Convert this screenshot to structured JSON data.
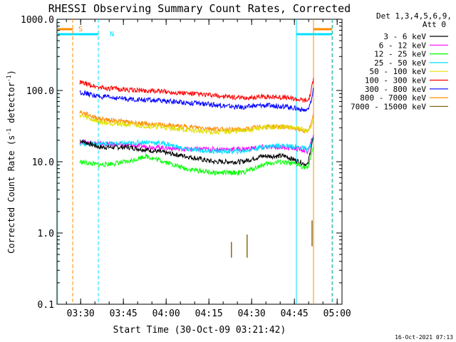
{
  "chart_data": {
    "type": "line",
    "title": "RHESSI Observing Summary Count Rates, Corrected",
    "xlabel": "Start Time (30-Oct-09 03:21:42)",
    "ylabel_main": "Corrected Count Rate (s",
    "ylabel_sup1": "-1",
    "ylabel_mid": " detector",
    "ylabel_sup2": "-1",
    "ylabel_end": ")",
    "yscale": "log",
    "ylim": [
      0.1,
      1000.0
    ],
    "yticks": [
      0.1,
      1.0,
      10.0,
      100.0,
      1000.0
    ],
    "ytick_labels": [
      "0.1",
      "1.0",
      "10.0",
      "100.0",
      "1000.0"
    ],
    "xlim_minutes": [
      0,
      100
    ],
    "xticks_minutes": [
      8.3,
      23.3,
      38.3,
      53.3,
      68.3,
      83.3,
      98.3
    ],
    "xtick_labels": [
      "03:30",
      "03:45",
      "04:00",
      "04:15",
      "04:30",
      "04:45",
      "05:00"
    ],
    "legend_placement": "top-right, outside plot",
    "legend_header": [
      "Det 1,3,4,5,6,9,",
      "Att 0"
    ],
    "series": [
      {
        "name": "3 - 6 keV",
        "color": "#000000",
        "x": [
          8,
          15,
          25,
          35,
          45,
          55,
          65,
          72,
          80,
          85,
          88,
          89,
          90
        ],
        "y": [
          20,
          16,
          16,
          14,
          12,
          10,
          10,
          12,
          12,
          10,
          9,
          15,
          22
        ]
      },
      {
        "name": "6 - 12 keV",
        "color": "#ff00ff",
        "x": [
          8,
          15,
          25,
          35,
          45,
          55,
          65,
          72,
          80,
          85,
          88,
          89,
          90
        ],
        "y": [
          19,
          18,
          17,
          16,
          15,
          15,
          15,
          16,
          16,
          15,
          14,
          18,
          24
        ]
      },
      {
        "name": "12 - 25 keV",
        "color": "#00ff00",
        "x": [
          8,
          15,
          25,
          31,
          38,
          45,
          55,
          65,
          72,
          78,
          85,
          88,
          89,
          90
        ],
        "y": [
          10,
          9,
          10,
          12,
          10,
          8,
          7,
          7,
          9,
          10,
          9,
          8,
          12,
          16
        ]
      },
      {
        "name": "25 - 50 keV",
        "color": "#00e0ff",
        "x": [
          8,
          15,
          25,
          31,
          38,
          45,
          55,
          65,
          72,
          78,
          85,
          88,
          89,
          90
        ],
        "y": [
          18,
          18,
          18,
          19,
          18,
          15,
          14,
          14,
          16,
          17,
          16,
          15,
          17,
          22
        ]
      },
      {
        "name": "50 - 100 keV",
        "color": "#e0e000",
        "x": [
          8,
          15,
          25,
          35,
          45,
          55,
          65,
          72,
          80,
          85,
          88,
          89,
          90
        ],
        "y": [
          45,
          36,
          33,
          31,
          28,
          26,
          27,
          30,
          31,
          29,
          27,
          30,
          40
        ]
      },
      {
        "name": "100 - 300 keV",
        "color": "#ff0000",
        "x": [
          8,
          15,
          25,
          35,
          45,
          55,
          65,
          72,
          80,
          85,
          88,
          89,
          90
        ],
        "y": [
          130,
          110,
          102,
          98,
          92,
          85,
          78,
          82,
          80,
          75,
          72,
          90,
          150
        ]
      },
      {
        "name": "300 - 800 keV",
        "color": "#0000ff",
        "x": [
          8,
          15,
          25,
          35,
          45,
          55,
          65,
          72,
          80,
          85,
          88,
          89,
          90
        ],
        "y": [
          95,
          82,
          76,
          72,
          68,
          63,
          58,
          62,
          60,
          55,
          52,
          65,
          110
        ]
      },
      {
        "name": "800 - 7000 keV",
        "color": "#ff8c00",
        "x": [
          8,
          15,
          25,
          35,
          45,
          55,
          65,
          72,
          80,
          85,
          88,
          89,
          90
        ],
        "y": [
          50,
          40,
          36,
          33,
          31,
          29,
          28,
          31,
          31,
          29,
          27,
          32,
          45
        ]
      },
      {
        "name": "7000 - 15000 keV",
        "color": "#8b6914",
        "x": [
          61.0,
          61.2,
          61.4,
          66.5,
          66.7,
          66.9,
          89.3,
          89.5,
          89.7
        ],
        "y": [
          0.45,
          0.75,
          0.5,
          0.5,
          0.95,
          0.45,
          0.65,
          1.5,
          0.75
        ]
      }
    ],
    "annotations": [
      {
        "text": "S",
        "color": "#ff8c00"
      },
      {
        "text": "N",
        "color": "#00e0ff"
      }
    ],
    "flag_bars": [
      {
        "color": "#ff8c00",
        "x_start": 0,
        "x_end": 5.5
      },
      {
        "color": "#ff8c00",
        "x_start": 90.0,
        "x_end": 96.5
      },
      {
        "color": "#00e0ff",
        "x_start": 0,
        "x_end": 14.5
      },
      {
        "color": "#00e0ff",
        "x_start": 84.0,
        "x_end": 96.5
      }
    ],
    "vertical_lines": [
      {
        "x": 0.2,
        "color": "#00e0ff",
        "style": "solid"
      },
      {
        "x": 5.5,
        "color": "#ff8c00",
        "style": "dashed"
      },
      {
        "x": 14.5,
        "color": "#00e0ff",
        "style": "dashed"
      },
      {
        "x": 84.0,
        "color": "#00e0ff",
        "style": "solid"
      },
      {
        "x": 90.0,
        "color": "#ff8c00",
        "style": "solid"
      },
      {
        "x": 96.5,
        "color": "#ff8c00",
        "style": "dashed"
      },
      {
        "x": 96.7,
        "color": "#00e0ff",
        "style": "dashed"
      }
    ],
    "footer_date": "16-Oct-2021 07:13",
    "grid": false
  }
}
